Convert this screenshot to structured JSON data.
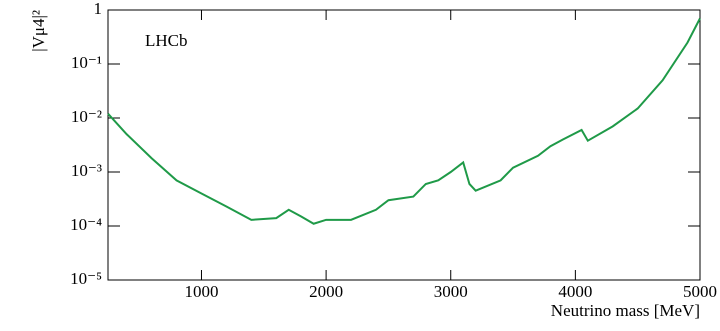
{
  "chart_data": {
    "type": "line",
    "y_label": "|Vμ4|²",
    "x_label": "Neutrino mass [MeV]",
    "annotation": "LHCb",
    "x": [
      250,
      400,
      600,
      800,
      1000,
      1200,
      1400,
      1600,
      1700,
      1800,
      1900,
      2000,
      2200,
      2400,
      2500,
      2700,
      2800,
      2900,
      3000,
      3100,
      3150,
      3200,
      3400,
      3500,
      3700,
      3800,
      3900,
      4050,
      4100,
      4300,
      4500,
      4700,
      4900,
      5000
    ],
    "values": [
      0.012,
      0.005,
      0.0018,
      0.0007,
      0.0004,
      0.00023,
      0.00013,
      0.00014,
      0.0002,
      0.00015,
      0.00011,
      0.00013,
      0.00013,
      0.0002,
      0.0003,
      0.00035,
      0.0006,
      0.0007,
      0.001,
      0.0015,
      0.0006,
      0.00045,
      0.0007,
      0.0012,
      0.002,
      0.003,
      0.004,
      0.006,
      0.0038,
      0.007,
      0.015,
      0.05,
      0.25,
      0.7
    ],
    "color": "#1f9a48",
    "xlim": [
      250,
      5000
    ],
    "xticks": [
      1000,
      2000,
      3000,
      4000,
      5000
    ],
    "ylim": [
      1e-05,
      1
    ],
    "log_y": true,
    "yticks": [
      {
        "value": 1e-05,
        "label": "10⁻⁵"
      },
      {
        "value": 0.0001,
        "label": "10⁻⁴"
      },
      {
        "value": 0.001,
        "label": "10⁻³"
      },
      {
        "value": 0.01,
        "label": "10⁻²"
      },
      {
        "value": 0.1,
        "label": "10⁻¹"
      },
      1
    ]
  }
}
